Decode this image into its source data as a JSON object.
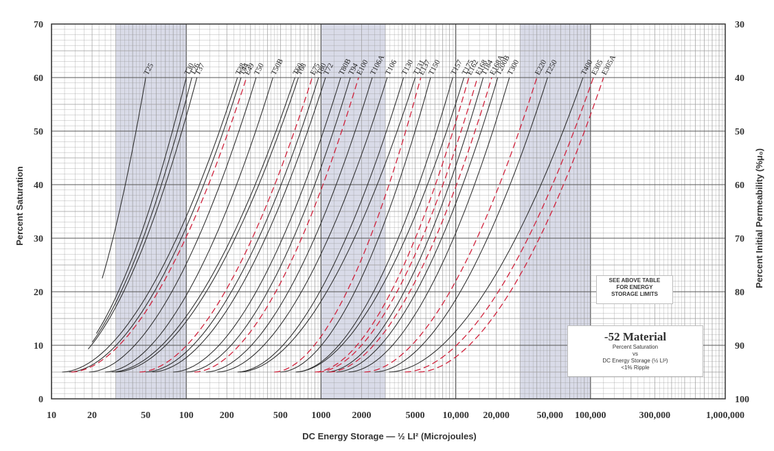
{
  "chart_data": {
    "type": "line",
    "title": "-52 Material",
    "subtitle_lines": [
      "Percent Saturation",
      "vs",
      "DC Energy Storage (½ LI²)",
      "<1% Ripple"
    ],
    "note_lines": [
      "SEE ABOVE TABLE",
      "FOR ENERGY",
      "STORAGE LIMITS"
    ],
    "xlabel": "DC Energy Storage — ½ LI² (Microjoules)",
    "ylabel": "Percent Saturation",
    "y2label": "Percent Initial Permeability (%μ₀)",
    "x_scale": "log",
    "xlim": [
      10,
      1000000
    ],
    "ylim": [
      0,
      70
    ],
    "grid": true,
    "x_ticks": [
      {
        "v": 10,
        "label": "10"
      },
      {
        "v": 20,
        "label": "20"
      },
      {
        "v": 50,
        "label": "50"
      },
      {
        "v": 100,
        "label": "100"
      },
      {
        "v": 200,
        "label": "200"
      },
      {
        "v": 500,
        "label": "500"
      },
      {
        "v": 1000,
        "label": "1000"
      },
      {
        "v": 2000,
        "label": "2000"
      },
      {
        "v": 5000,
        "label": "5000"
      },
      {
        "v": 10000,
        "label": "10,000"
      },
      {
        "v": 20000,
        "label": "20,000"
      },
      {
        "v": 50000,
        "label": "50,000"
      },
      {
        "v": 100000,
        "label": "100,000"
      },
      {
        "v": 300000,
        "label": "300,000"
      },
      {
        "v": 1000000,
        "label": "1,000,000"
      }
    ],
    "y_ticks": [
      0,
      10,
      20,
      30,
      40,
      50,
      60,
      70
    ],
    "y2_ticks": [
      {
        "v": 0,
        "label": "100"
      },
      {
        "v": 10,
        "label": "90"
      },
      {
        "v": 20,
        "label": "80"
      },
      {
        "v": 30,
        "label": "70"
      },
      {
        "v": 40,
        "label": "60"
      },
      {
        "v": 50,
        "label": "50"
      },
      {
        "v": 60,
        "label": "40"
      },
      {
        "v": 70,
        "label": "30"
      }
    ],
    "shaded_bands": [
      [
        30,
        100
      ],
      [
        1000,
        3000
      ],
      [
        30000,
        100000
      ]
    ],
    "series": [
      {
        "name": "T25",
        "x60": 50,
        "x5": 10,
        "y_start": 22.5,
        "dashed": false
      },
      {
        "name": "T30",
        "x60": 100,
        "x5": 10,
        "y_start": 12.2,
        "dashed": false
      },
      {
        "name": "T26",
        "x60": 110,
        "x5": 10,
        "y_start": 10.6,
        "dashed": false
      },
      {
        "name": "T37",
        "x60": 120,
        "x5": 10,
        "y_start": 9.3,
        "dashed": false
      },
      {
        "name": "T38",
        "x60": 240,
        "x5": 12,
        "dashed": false
      },
      {
        "name": "T44",
        "x60": 255,
        "x5": 13.5,
        "dashed": false
      },
      {
        "name": "E49",
        "x60": 280,
        "x5": 14,
        "dashed": true
      },
      {
        "name": "T50",
        "x60": 330,
        "x5": 19,
        "dashed": false
      },
      {
        "name": "T50B",
        "x60": 440,
        "x5": 25,
        "dashed": false
      },
      {
        "name": "T60",
        "x60": 640,
        "x5": 28,
        "dashed": false
      },
      {
        "name": "T68",
        "x60": 680,
        "x5": 30,
        "dashed": false
      },
      {
        "name": "E75",
        "x60": 860,
        "x5": 45,
        "dashed": true
      },
      {
        "name": "T80",
        "x60": 960,
        "x5": 50,
        "dashed": false
      },
      {
        "name": "T72",
        "x60": 1080,
        "x5": 56,
        "dashed": false
      },
      {
        "name": "T80B",
        "x60": 1400,
        "x5": 80,
        "dashed": false
      },
      {
        "name": "T94",
        "x60": 1650,
        "x5": 100,
        "dashed": false
      },
      {
        "name": "E100",
        "x60": 1900,
        "x5": 115,
        "dashed": true
      },
      {
        "name": "T106A",
        "x60": 2400,
        "x5": 140,
        "dashed": false
      },
      {
        "name": "T106",
        "x60": 3100,
        "x5": 170,
        "dashed": false
      },
      {
        "name": "T130",
        "x60": 4100,
        "x5": 240,
        "dashed": false
      },
      {
        "name": "T131",
        "x60": 5000,
        "x5": 250,
        "dashed": false
      },
      {
        "name": "E137",
        "x60": 5500,
        "x5": 450,
        "dashed": true
      },
      {
        "name": "T150",
        "x60": 6500,
        "x5": 500,
        "dashed": false
      },
      {
        "name": "T157",
        "x60": 9500,
        "x5": 650,
        "dashed": false
      },
      {
        "name": "T175",
        "x60": 11500,
        "x5": 650,
        "dashed": false
      },
      {
        "name": "E162",
        "x60": 12500,
        "x5": 900,
        "dashed": true
      },
      {
        "name": "E168",
        "x60": 14500,
        "x5": 950,
        "dashed": true
      },
      {
        "name": "T184",
        "x60": 16000,
        "x5": 1100,
        "dashed": false
      },
      {
        "name": "E168A",
        "x60": 18500,
        "x5": 1150,
        "dashed": true
      },
      {
        "name": "T200B",
        "x60": 20500,
        "x5": 1300,
        "dashed": false
      },
      {
        "name": "T300",
        "x60": 25000,
        "x5": 1600,
        "dashed": false
      },
      {
        "name": "E220",
        "x60": 40000,
        "x5": 2100,
        "dashed": true
      },
      {
        "name": "T250",
        "x60": 48000,
        "x5": 2500,
        "dashed": false
      },
      {
        "name": "T400",
        "x60": 88000,
        "x5": 3200,
        "dashed": false
      },
      {
        "name": "E305",
        "x60": 105000,
        "x5": 4200,
        "dashed": true
      },
      {
        "name": "E305A",
        "x60": 125000,
        "x5": 5300,
        "dashed": true
      }
    ],
    "colors": {
      "curve": "#2a2a2a",
      "dashed": "#d0203a",
      "band": "#d9dbe8",
      "grid": "#9a9a9a"
    }
  }
}
